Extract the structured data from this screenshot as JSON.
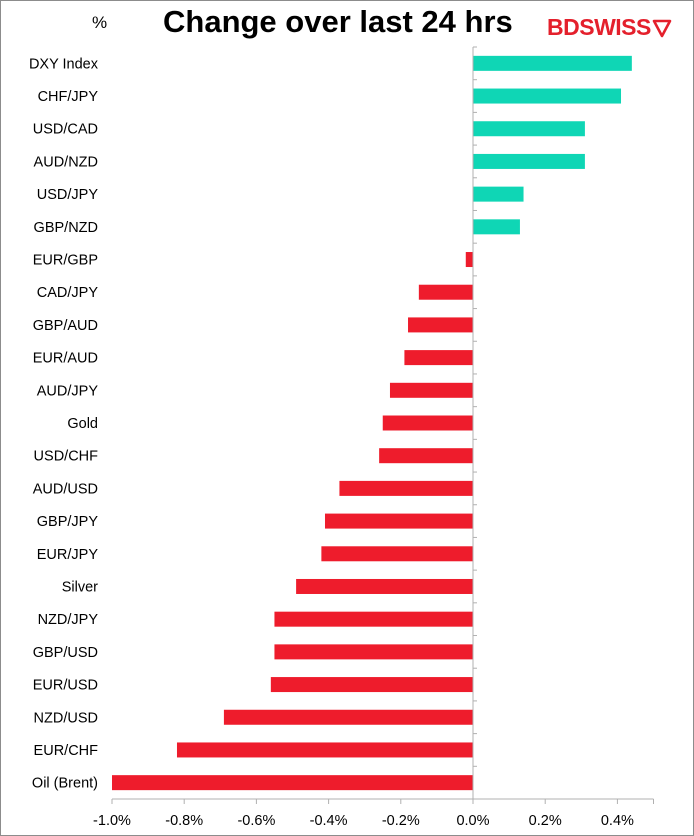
{
  "header": {
    "unit": "%",
    "title": "Change over last 24 hrs",
    "brand": {
      "part1": "BD",
      "part2": "SWISS",
      "icon": "arrow-flag-icon",
      "color": "#e4202c"
    }
  },
  "chart_data": {
    "type": "bar",
    "orientation": "horizontal",
    "title": "Change over last 24 hrs",
    "ylabel": "%",
    "xlim": [
      -1.0,
      0.5
    ],
    "x_ticks": [
      -1.0,
      -0.8,
      -0.6,
      -0.4,
      -0.2,
      0.0,
      0.2,
      0.4
    ],
    "x_tick_labels": [
      "-1.0%",
      "-0.8%",
      "-0.6%",
      "-0.4%",
      "-0.2%",
      "0.0%",
      "0.2%",
      "0.4%"
    ],
    "grid": false,
    "colors": {
      "positive": "#0fd6b5",
      "negative": "#ee1c2c"
    },
    "categories": [
      "DXY Index",
      "CHF/JPY",
      "USD/CAD",
      "AUD/NZD",
      "USD/JPY",
      "GBP/NZD",
      "EUR/GBP",
      "CAD/JPY",
      "GBP/AUD",
      "EUR/AUD",
      "AUD/JPY",
      "Gold",
      "USD/CHF",
      "AUD/USD",
      "GBP/JPY",
      "EUR/JPY",
      "Silver",
      "NZD/JPY",
      "GBP/USD",
      "EUR/USD",
      "NZD/USD",
      "EUR/CHF",
      "Oil (Brent)"
    ],
    "values": [
      0.44,
      0.41,
      0.31,
      0.31,
      0.14,
      0.13,
      -0.02,
      -0.15,
      -0.18,
      -0.19,
      -0.23,
      -0.25,
      -0.26,
      -0.37,
      -0.41,
      -0.42,
      -0.49,
      -0.55,
      -0.55,
      -0.56,
      -0.69,
      -0.82,
      -1.0
    ]
  }
}
